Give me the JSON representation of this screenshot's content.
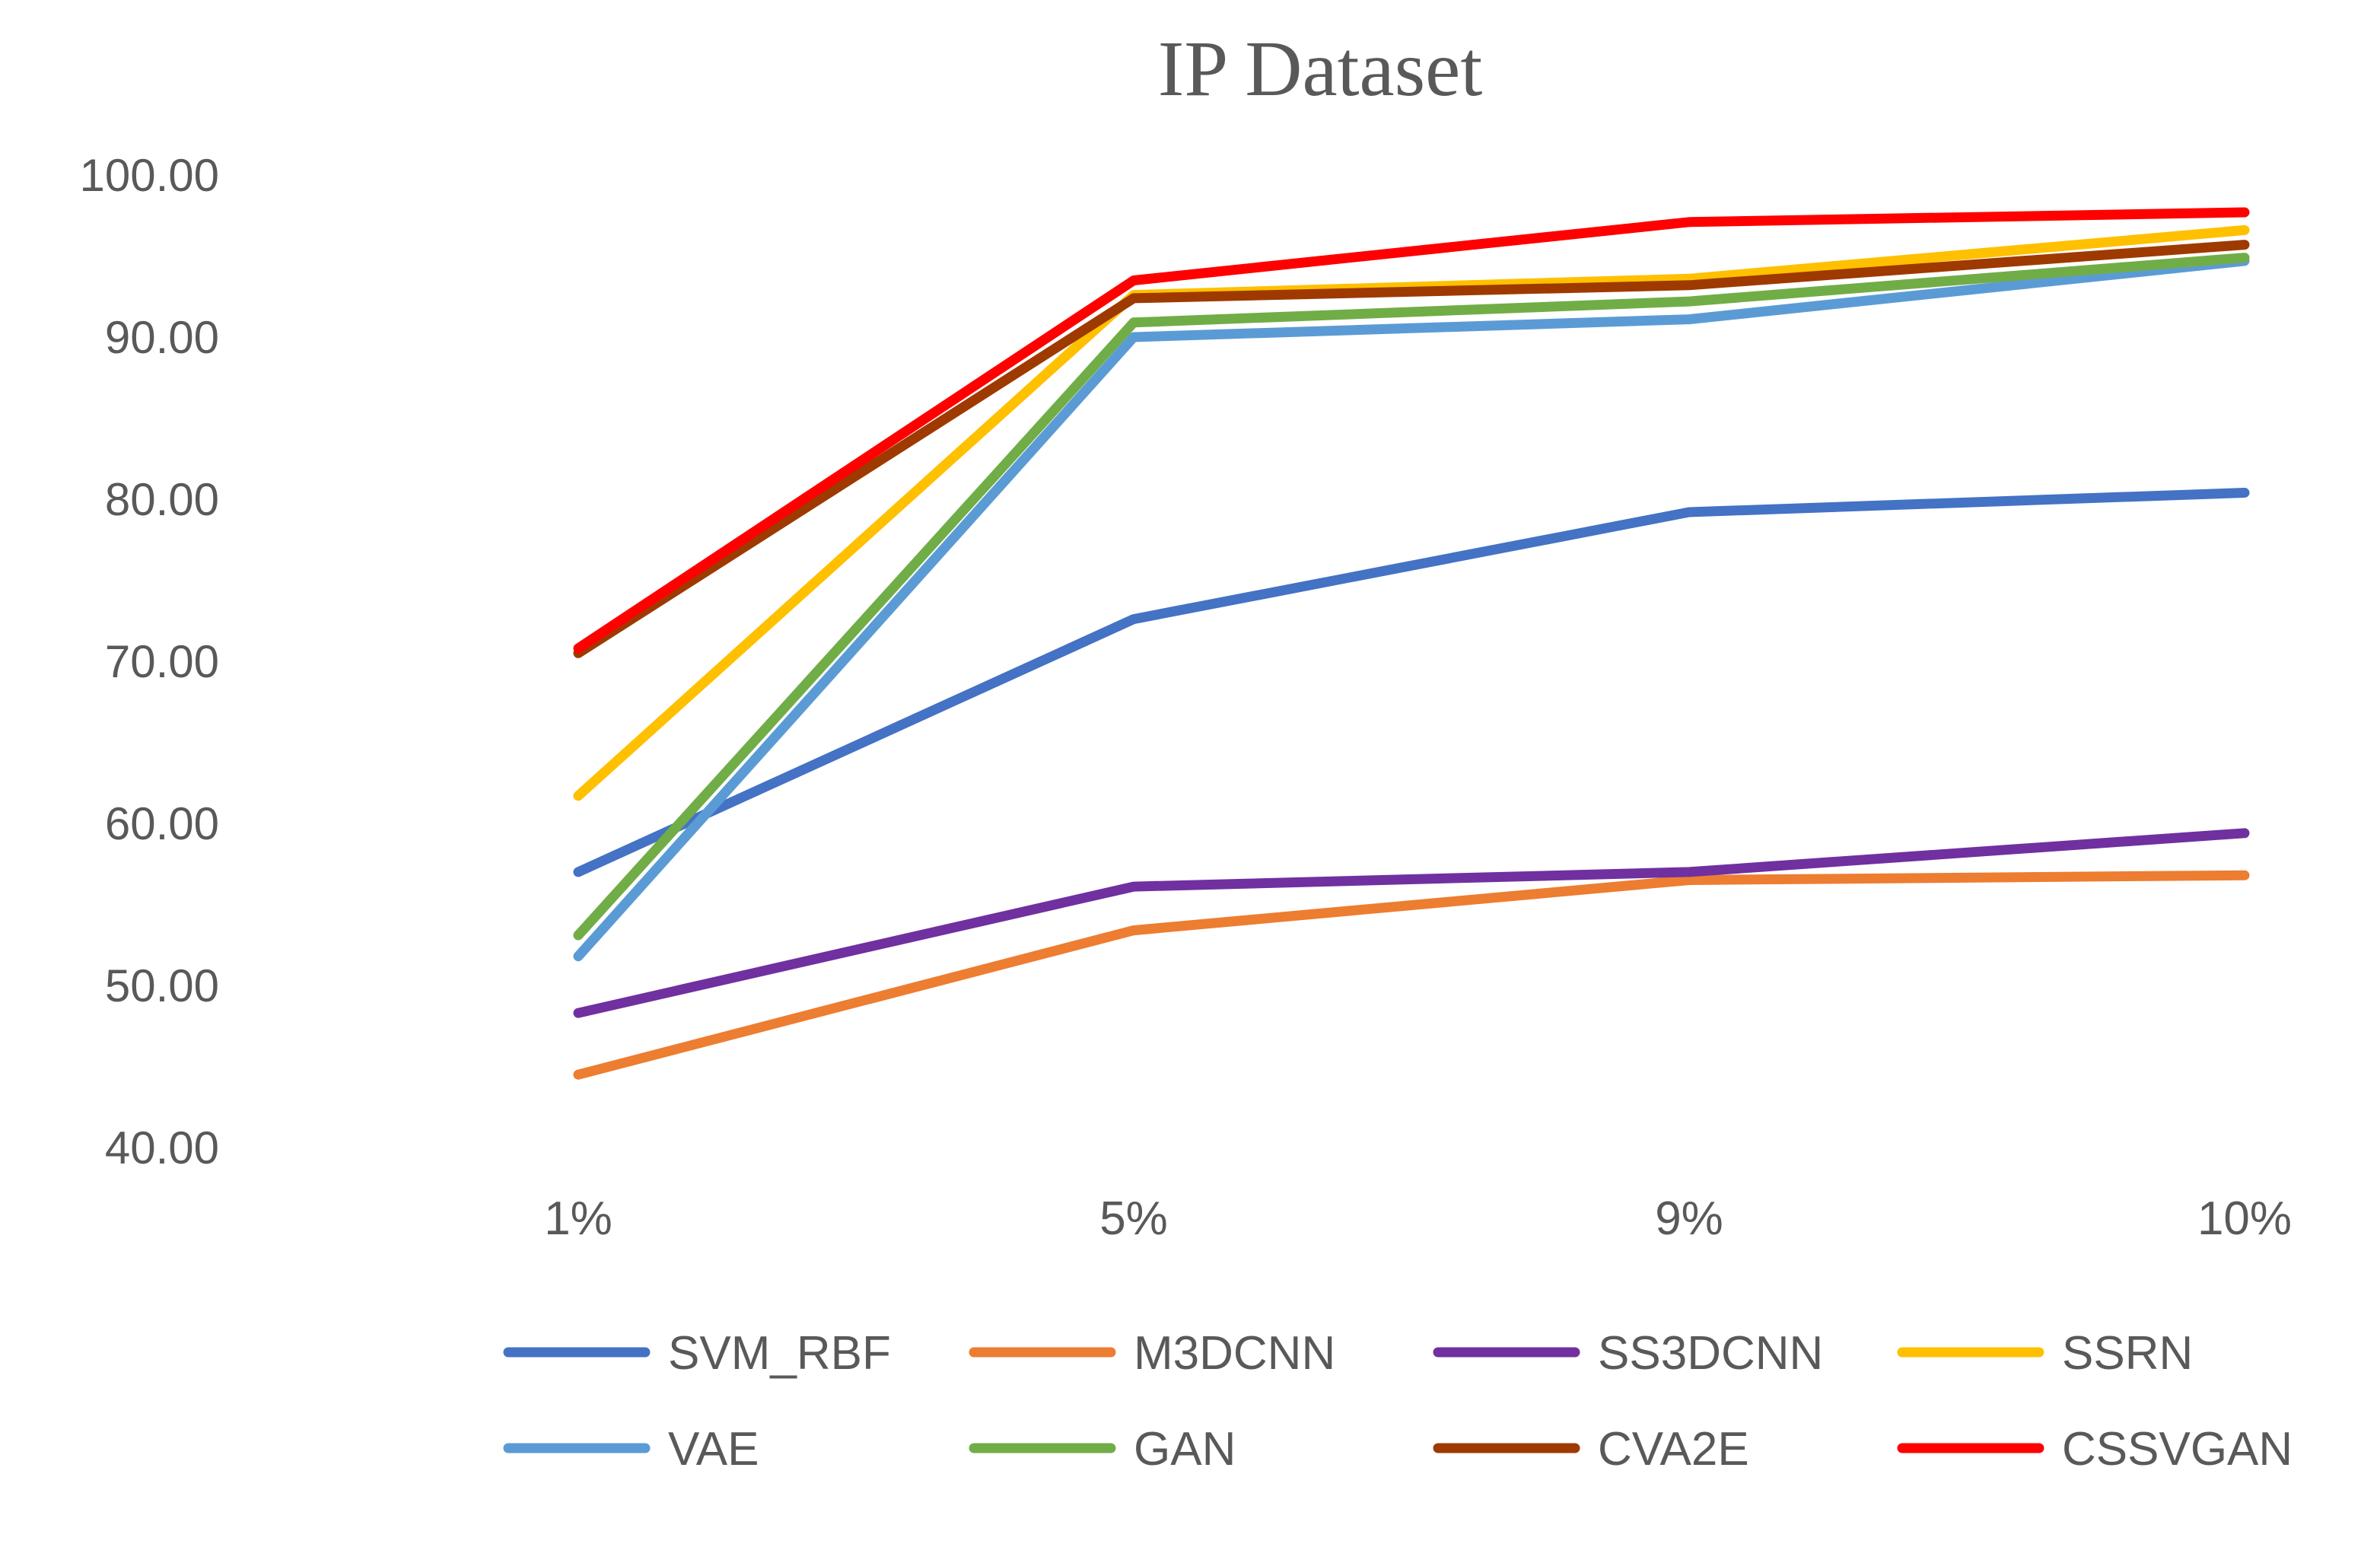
{
  "chart_data": {
    "type": "line",
    "title": "IP Dataset",
    "xlabel": "",
    "ylabel": "",
    "categories": [
      "1%",
      "5%",
      "9%",
      "10%"
    ],
    "ylim": [
      40,
      100
    ],
    "yticks": [
      "40.00",
      "50.00",
      "60.00",
      "70.00",
      "80.00",
      "90.00",
      "100.00"
    ],
    "legend_position": "bottom",
    "grid": false,
    "series": [
      {
        "name": "SVM_RBF",
        "color": "#4472C4",
        "values": [
          57.0,
          72.6,
          79.2,
          80.4
        ]
      },
      {
        "name": "M3DCNN",
        "color": "#ED7D31",
        "values": [
          44.5,
          53.4,
          56.5,
          56.8
        ]
      },
      {
        "name": "SS3DCNN",
        "color": "#7030A0",
        "values": [
          48.3,
          56.1,
          57.0,
          59.4
        ]
      },
      {
        "name": "SSRN",
        "color": "#FFC000",
        "values": [
          61.7,
          92.6,
          93.6,
          96.6
        ]
      },
      {
        "name": "VAE",
        "color": "#5B9BD5",
        "values": [
          51.8,
          90.0,
          91.1,
          94.7
        ]
      },
      {
        "name": "GAN",
        "color": "#70AD47",
        "values": [
          53.1,
          90.9,
          92.2,
          94.9
        ]
      },
      {
        "name": "CVA2E",
        "color": "#9E3A00",
        "values": [
          70.5,
          92.4,
          93.2,
          95.7
        ]
      },
      {
        "name": "CSSVGAN",
        "color": "#FF0000",
        "values": [
          70.8,
          93.5,
          97.1,
          97.7
        ]
      }
    ]
  }
}
